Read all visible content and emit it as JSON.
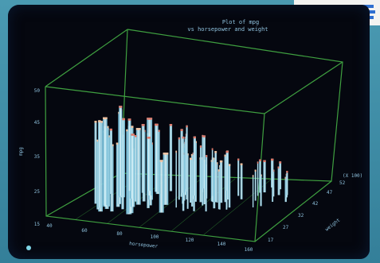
{
  "plot": {
    "title": "Plot of mpg",
    "subtitle": "vs horsepower and weight",
    "ylabel": "mpg",
    "xlabel": "horsepower",
    "zlabel": "weight",
    "z_multiplier": "(X 100)",
    "y_ticks": [
      "50",
      "45",
      "35",
      "25",
      "15"
    ],
    "x_ticks": [
      "40",
      "60",
      "80",
      "100",
      "120",
      "140",
      "160"
    ],
    "z_ticks": [
      "17",
      "27",
      "32",
      "42",
      "47",
      "52"
    ],
    "colors": {
      "box": "#3fa040",
      "bars_light": "#cfeef7",
      "bars_mid": "#6fbcd6",
      "bars_tip": "#e07a6a",
      "text": "#8fc2de"
    }
  },
  "logo": {
    "name": "IBM-style striped logo"
  }
}
